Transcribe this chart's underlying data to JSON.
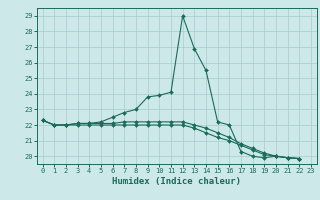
{
  "title": "",
  "xlabel": "Humidex (Indice chaleur)",
  "bg_color": "#cce8e8",
  "grid_color": "#a8cccc",
  "line_color": "#1a6b5a",
  "xlim": [
    -0.5,
    23.5
  ],
  "ylim": [
    19.5,
    29.5
  ],
  "xticks": [
    0,
    1,
    2,
    3,
    4,
    5,
    6,
    7,
    8,
    9,
    10,
    11,
    12,
    13,
    14,
    15,
    16,
    17,
    18,
    19,
    20,
    21,
    22,
    23
  ],
  "yticks": [
    20,
    21,
    22,
    23,
    24,
    25,
    26,
    27,
    28,
    29
  ],
  "series": [
    [
      22.3,
      22.0,
      22.0,
      22.1,
      22.1,
      22.2,
      22.5,
      22.8,
      23.0,
      23.8,
      23.9,
      24.1,
      29.0,
      26.9,
      25.5,
      22.2,
      22.0,
      20.3,
      20.0,
      19.9,
      20.0,
      19.9,
      19.85
    ],
    [
      22.3,
      22.0,
      22.0,
      22.1,
      22.1,
      22.1,
      22.1,
      22.2,
      22.2,
      22.2,
      22.2,
      22.2,
      22.2,
      22.0,
      21.8,
      21.5,
      21.2,
      20.8,
      20.5,
      20.2,
      20.0,
      19.9,
      19.85
    ],
    [
      22.3,
      22.0,
      22.0,
      22.0,
      22.0,
      22.0,
      22.0,
      22.0,
      22.0,
      22.0,
      22.0,
      22.0,
      22.0,
      21.8,
      21.5,
      21.2,
      21.0,
      20.7,
      20.4,
      20.1,
      20.0,
      19.9,
      19.85
    ]
  ],
  "series_x": [
    [
      0,
      1,
      2,
      3,
      4,
      5,
      6,
      7,
      8,
      9,
      10,
      11,
      12,
      13,
      14,
      15,
      16,
      17,
      18,
      19,
      20,
      21,
      22
    ],
    [
      0,
      1,
      2,
      3,
      4,
      5,
      6,
      7,
      8,
      9,
      10,
      11,
      12,
      13,
      14,
      15,
      16,
      17,
      18,
      19,
      20,
      21,
      22
    ],
    [
      0,
      1,
      2,
      3,
      4,
      5,
      6,
      7,
      8,
      9,
      10,
      11,
      12,
      13,
      14,
      15,
      16,
      17,
      18,
      19,
      20,
      21,
      22
    ]
  ]
}
